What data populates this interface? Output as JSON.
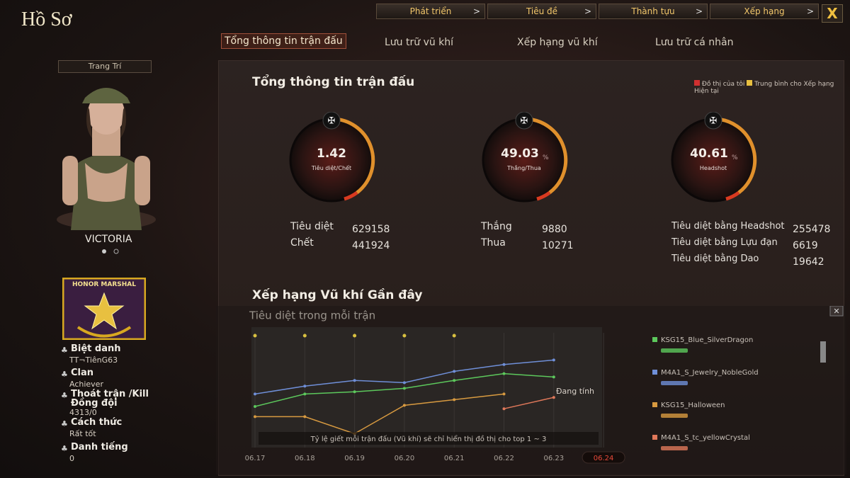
{
  "header": {
    "title": "Hồ Sơ",
    "nav": [
      "Phát triển",
      "Tiêu đề",
      "Thành tựu",
      "Xếp hạng"
    ],
    "close": "X"
  },
  "tabs": [
    "Tổng thông tin trận đấu",
    "Lưu trữ vũ khí",
    "Xếp hạng vũ khí",
    "Lưu trữ cá nhân"
  ],
  "profile": {
    "decorate_button": "Trang Trí",
    "character": "VICTORIA",
    "badge": "HONOR MARSHAL",
    "info": [
      {
        "label": "Biệt danh",
        "value": "TT¬TiênG63"
      },
      {
        "label": "Clan",
        "value": "Achiever"
      },
      {
        "label": "Thoát trận /Kill Đồng đội",
        "value": "4313/0"
      },
      {
        "label": "Cách thức",
        "value": "Rất tốt"
      },
      {
        "label": "Danh tiếng",
        "value": "0"
      }
    ]
  },
  "summary": {
    "title": "Tổng thông tin trận đấu",
    "legend": [
      "Đồ thị của tôi",
      "Trung bình cho Xếp hạng Hiện tại"
    ],
    "gauges": [
      {
        "value": 1.42,
        "label": "Tiêu diệt/Chết"
      },
      {
        "value": 49.03,
        "unit": "%",
        "label": "Thắng/Thua"
      },
      {
        "value": 40.61,
        "unit": "%",
        "label": "Headshot"
      }
    ],
    "stats": [
      [
        {
          "label": "Tiêu diệt",
          "value": 629158
        },
        {
          "label": "Chết",
          "value": 441924
        }
      ],
      [
        {
          "label": "Thắng",
          "value": 9880
        },
        {
          "label": "Thua",
          "value": 10271
        }
      ],
      [
        {
          "label": "Tiêu diệt bằng Headshot",
          "value": 255478
        },
        {
          "label": "Tiêu diệt bằng Lựu đạn",
          "value": 6619
        },
        {
          "label": "Tiêu diệt bằng Dao",
          "value": 19642
        }
      ]
    ]
  },
  "recent": {
    "title": "Xếp hạng Vũ khí Gần đây",
    "status": "Đang tính",
    "note": "Tỷ lệ giết mỗi trận đấu (Vũ khí) sẽ chỉ hiển thị đồ thị cho top 1 ~ 3",
    "chart": {
      "type": "line",
      "title": "Tiêu diệt trong mỗi trận",
      "categories": [
        "06.17",
        "06.18",
        "06.19",
        "06.20",
        "06.21",
        "06.22",
        "06.23",
        "06.24"
      ],
      "ylim": [
        0,
        10
      ],
      "series": [
        {
          "name": "KSG15_Blue_SilverDragon",
          "color": "#5cc85c",
          "values": [
            3.5,
            4.6,
            4.8,
            5.1,
            5.8,
            6.4,
            6.1,
            null
          ]
        },
        {
          "name": "M4A1_S_Jewelry_NobleGold",
          "color": "#6f8fd8",
          "values": [
            4.6,
            5.3,
            5.8,
            5.6,
            6.6,
            7.2,
            7.6,
            null
          ]
        },
        {
          "name": "KSG15_Halloween",
          "color": "#d89a40",
          "values": [
            2.6,
            2.6,
            1.1,
            3.6,
            4.1,
            4.6,
            null,
            null
          ]
        },
        {
          "name": "M4A1_S_tc_yellowCrystal",
          "color": "#e0785a",
          "values": [
            null,
            null,
            null,
            null,
            null,
            3.3,
            4.3,
            null
          ]
        }
      ]
    }
  }
}
